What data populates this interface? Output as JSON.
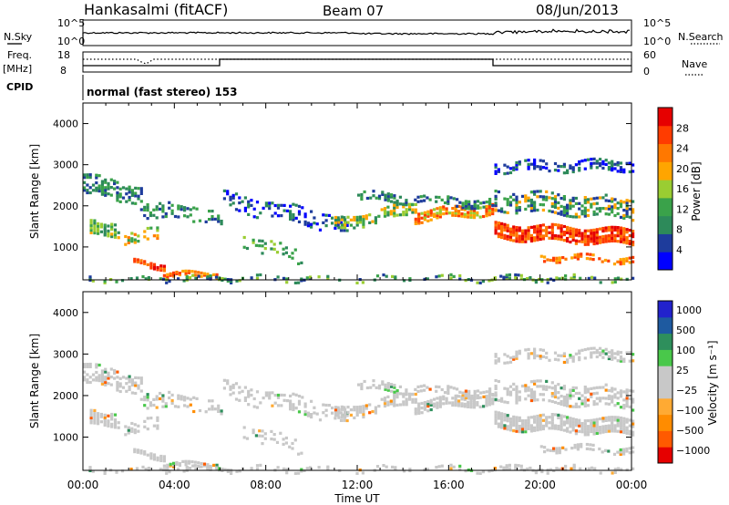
{
  "header": {
    "station": "Hankasalmi (fitACF)",
    "beam": "Beam 07",
    "date": "08/Jun/2013"
  },
  "panels": {
    "nsky": {
      "label": "N.Sky",
      "ticks_left": [
        "10^5",
        "10^0"
      ],
      "ticks_right": [
        "10^5",
        "10^0"
      ],
      "right_label": "N.Search"
    },
    "freq": {
      "label": "Freq.",
      "unit": "[MHz]",
      "ticks_left": [
        "18",
        "8"
      ],
      "ticks_right": [
        "60",
        "0"
      ],
      "right_label": "Nave"
    },
    "cpid": {
      "label": "CPID",
      "text": "normal (fast stereo) 153"
    }
  },
  "colors": {
    "power": [
      "#0000ff",
      "#1e3c9c",
      "#2d8a5a",
      "#3aa24a",
      "#9acd32",
      "#ffa500",
      "#ff7800",
      "#ff3c00",
      "#e60000"
    ],
    "velocity": [
      "#e60000",
      "#ff5a00",
      "#ff8c00",
      "#ffaa33",
      "#c8c8c8",
      "#c8c8c8",
      "#49c84a",
      "#2e8f5c",
      "#1e5aa0",
      "#2222cc"
    ],
    "ground_scatter": "#c8c8c8"
  },
  "chart_data": [
    {
      "type": "heatmap",
      "name": "power",
      "ylabel": "Slant Range [km]",
      "yticks": [
        "1000",
        "2000",
        "3000",
        "4000"
      ],
      "ylim": [
        200,
        4500
      ],
      "xlim": [
        0,
        24
      ],
      "colorbar": {
        "label": "Power [dB]",
        "ticks": [
          "4",
          "8",
          "12",
          "16",
          "20",
          "24",
          "28"
        ],
        "range": [
          0,
          32
        ]
      }
    },
    {
      "type": "heatmap",
      "name": "velocity",
      "xlabel": "Time UT",
      "ylabel": "Slant Range [km]",
      "xticks": [
        "00:00",
        "04:00",
        "08:00",
        "12:00",
        "16:00",
        "20:00",
        "00:00"
      ],
      "yticks": [
        "1000",
        "2000",
        "3000",
        "4000"
      ],
      "ylim": [
        200,
        4500
      ],
      "xlim": [
        0,
        24
      ],
      "colorbar": {
        "label": "Velocity [m s⁻¹]",
        "ticks": [
          "1000",
          "500",
          "100",
          "25",
          "−25",
          "−100",
          "−500",
          "−1000"
        ]
      }
    }
  ]
}
